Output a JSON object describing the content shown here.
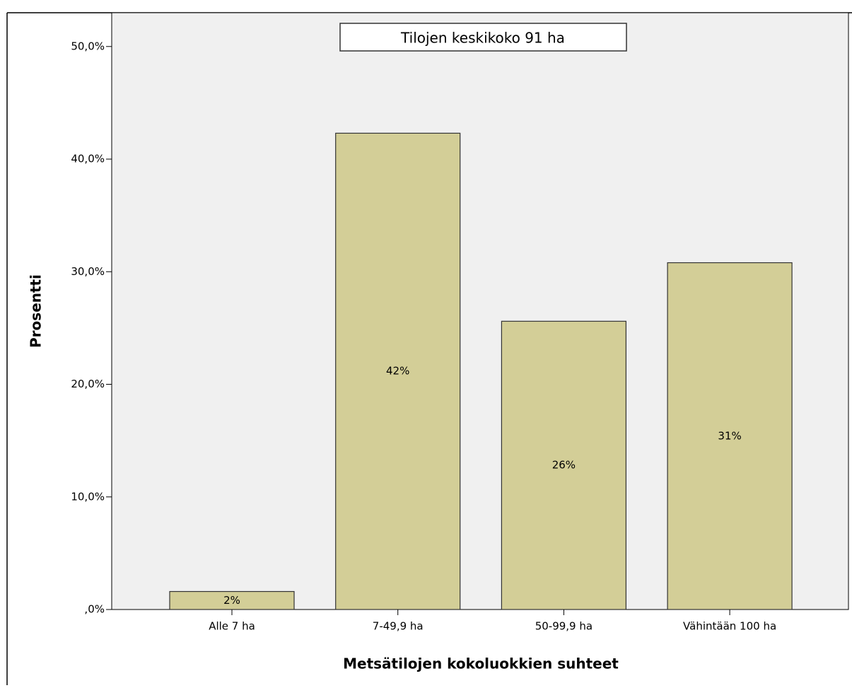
{
  "chart_data": {
    "type": "bar",
    "annotation": "Tilojen keskikoko 91 ha",
    "x_label": "Metsätilojen kokoluokkien suhteet",
    "y_label": "Prosentti",
    "categories": [
      "Alle 7 ha",
      "7-49,9 ha",
      "50-99,9 ha",
      "Vähintään 100 ha"
    ],
    "values": [
      1.6,
      42.3,
      25.6,
      30.8
    ],
    "value_labels": [
      "2%",
      "42%",
      "26%",
      "31%"
    ],
    "color": "#d3ce97",
    "ylim": [
      0,
      53
    ],
    "yticks": [
      {
        "value": 0,
        "label": ",0%"
      },
      {
        "value": 10,
        "label": "10,0%"
      },
      {
        "value": 20,
        "label": "20,0%"
      },
      {
        "value": 30,
        "label": "30,0%"
      },
      {
        "value": 40,
        "label": "40,0%"
      },
      {
        "value": 50,
        "label": "50,0%"
      }
    ],
    "grid": false
  }
}
